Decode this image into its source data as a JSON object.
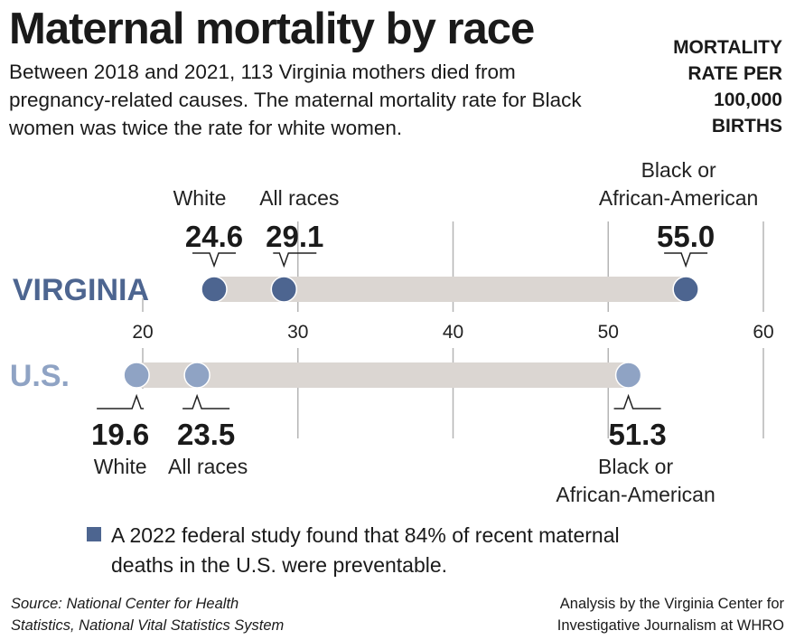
{
  "title": "Maternal mortality by race",
  "subtitle": "Between 2018 and 2021, 113 Virginia mothers died from pregnancy-related causes. The maternal mortality rate for Black women was twice the rate for white women.",
  "unit_label": [
    "MORTALITY",
    "RATE PER",
    "100,000",
    "BIRTHS"
  ],
  "note": "A 2022 federal study found that 84% of recent maternal deaths in the U.S. were preventable.",
  "source": [
    "Source: National Center for Health",
    "Statistics, National Vital Statistics System"
  ],
  "credit": [
    "Analysis by the Virginia Center for",
    "Investigative Journalism at WHRO"
  ],
  "colors": {
    "virginia": "#4d6590",
    "us": "#8fa3c4",
    "range_bar": "#dbd6d2",
    "grid": "#b5b5b5",
    "note_square": "#4d6590"
  },
  "chart_data": {
    "type": "dot-range",
    "xlim": [
      20,
      60
    ],
    "ticks": [
      "20",
      "30",
      "40",
      "50",
      "60"
    ],
    "tick_values": [
      20,
      30,
      40,
      50,
      60
    ],
    "grid": true,
    "series": [
      {
        "name": "VIRGINIA",
        "points": [
          {
            "label": "White",
            "value": 24.6,
            "display": "24.6"
          },
          {
            "label": "All races",
            "value": 29.1,
            "display": "29.1"
          },
          {
            "label": "Black or African-American",
            "label_lines": [
              "Black or",
              "African-American"
            ],
            "value": 55.0,
            "display": "55.0"
          }
        ]
      },
      {
        "name": "U.S.",
        "points": [
          {
            "label": "White",
            "value": 19.6,
            "display": "19.6"
          },
          {
            "label": "All races",
            "value": 23.5,
            "display": "23.5"
          },
          {
            "label": "Black or African-American",
            "label_lines": [
              "Black or",
              "African-American"
            ],
            "value": 51.3,
            "display": "51.3"
          }
        ]
      }
    ]
  }
}
